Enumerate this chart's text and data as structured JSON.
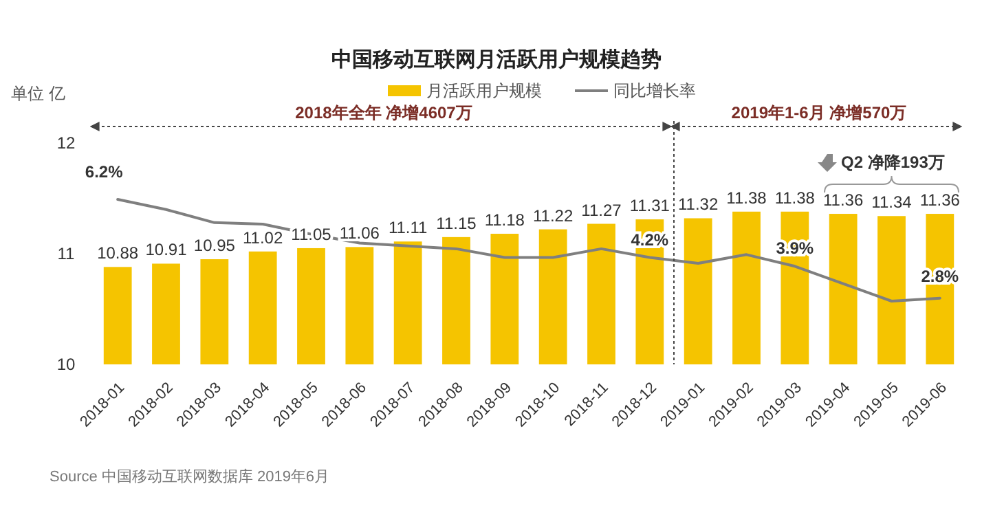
{
  "chart_data": {
    "type": "bar",
    "title": "中国移动互联网月活跃用户规模趋势",
    "ylabel": "单位  亿",
    "legend": "top",
    "grid": false,
    "data_labels": true,
    "categories": [
      "2018-01",
      "2018-02",
      "2018-03",
      "2018-04",
      "2018-05",
      "2018-06",
      "2018-07",
      "2018-08",
      "2018-09",
      "2018-10",
      "2018-11",
      "2018-12",
      "2019-01",
      "2019-02",
      "2019-03",
      "2019-04",
      "2019-05",
      "2019-06"
    ],
    "ylim": [
      10,
      12
    ],
    "yticks": [
      10,
      11,
      12
    ],
    "series": [
      {
        "name": "月活跃用户规模",
        "color": "#f5c400",
        "values": [
          10.88,
          10.91,
          10.95,
          11.02,
          11.05,
          11.06,
          11.11,
          11.15,
          11.18,
          11.22,
          11.27,
          11.31,
          11.32,
          11.38,
          11.38,
          11.36,
          11.34,
          11.36
        ]
      },
      {
        "name": "同比增长率",
        "type": "line",
        "axis": "y2",
        "color": "#7f7f7f",
        "values": [
          6.2,
          5.85,
          5.4,
          5.35,
          5.0,
          4.7,
          4.6,
          4.5,
          4.2,
          4.2,
          4.5,
          4.2,
          4.0,
          4.3,
          3.9,
          3.3,
          2.7,
          2.8
        ],
        "value_labels": [
          "6.2%",
          null,
          null,
          null,
          null,
          null,
          null,
          null,
          null,
          null,
          null,
          "4.2%",
          null,
          null,
          "3.9%",
          null,
          null,
          "2.8%"
        ]
      }
    ],
    "annotations": [
      "2018年全年  净增4607万",
      "2019年1-6月  净增570万",
      "Q2  净降193万",
      "Source  中国移动互联网数据库 2019年6月"
    ]
  }
}
